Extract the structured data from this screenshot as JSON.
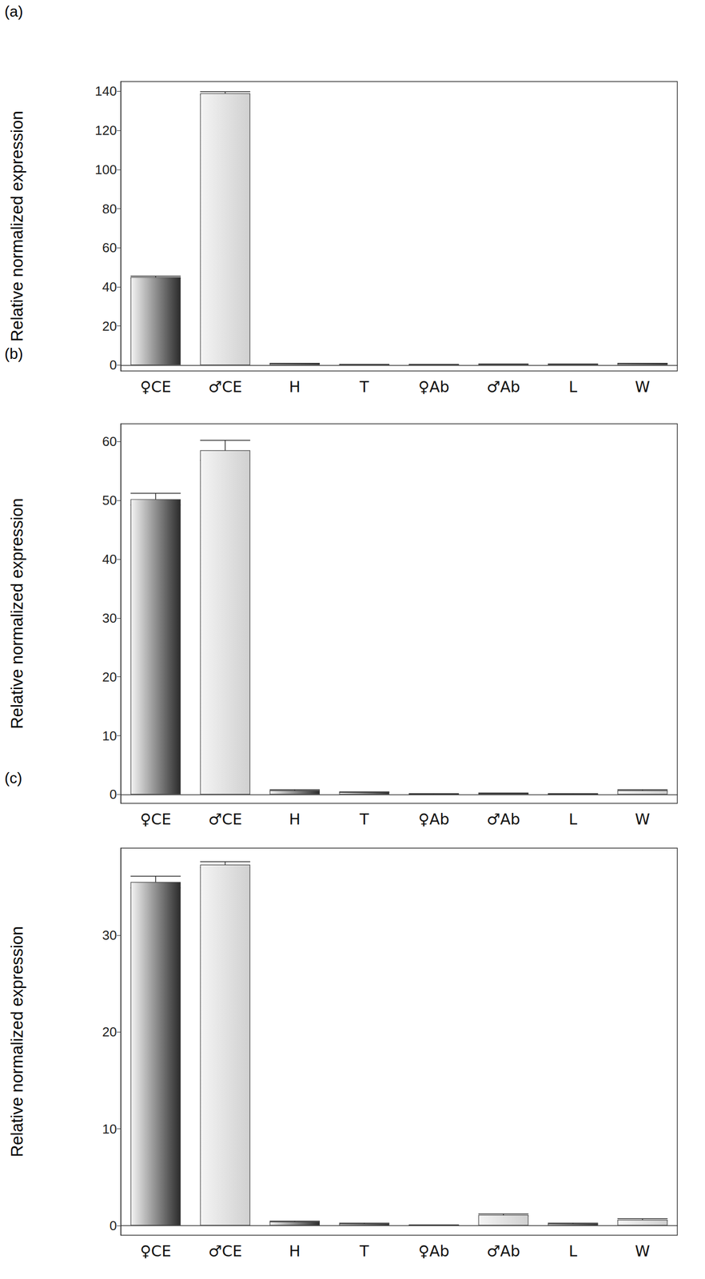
{
  "chart_data": [
    {
      "type": "bar",
      "title": "(a)",
      "ylabel": "Relative normalized expression",
      "categories": [
        "♀CE",
        "♂CE",
        "H",
        "T",
        "♀Ab",
        "♂Ab",
        "L",
        "W"
      ],
      "values": [
        45,
        139,
        0.8,
        0.3,
        0.3,
        0.5,
        0.5,
        0.8
      ],
      "errors": [
        0.5,
        0.8,
        0.1,
        0.05,
        0.05,
        0.05,
        0.05,
        0.1
      ],
      "colors": [
        "#2b2b2b",
        "#d0d0d0",
        "#2b2b2b",
        "#2b2b2b",
        "#2b2b2b",
        "#2b2b2b",
        "#2b2b2b",
        "#2b2b2b"
      ],
      "ylim": [
        -3,
        145
      ],
      "yticks": [
        0,
        20,
        40,
        60,
        80,
        100,
        120,
        140
      ],
      "grid": false
    },
    {
      "type": "bar",
      "title": "(b)",
      "ylabel": "Relative normalized expression",
      "categories": [
        "♀CE",
        "♂CE",
        "H",
        "T",
        "♀Ab",
        "♂Ab",
        "L",
        "W"
      ],
      "values": [
        50.2,
        58.5,
        0.7,
        0.4,
        0.1,
        0.2,
        0.1,
        0.7
      ],
      "errors": [
        1.0,
        1.7,
        0.1,
        0.05,
        0.05,
        0.05,
        0.05,
        0.1
      ],
      "colors": [
        "#2b2b2b",
        "#d0d0d0",
        "#2b2b2b",
        "#2b2b2b",
        "#2b2b2b",
        "#2b2b2b",
        "#2b2b2b",
        "#d0d0d0"
      ],
      "ylim": [
        -1.5,
        63
      ],
      "yticks": [
        0,
        10,
        20,
        30,
        40,
        50,
        60
      ],
      "grid": false
    },
    {
      "type": "bar",
      "title": "(c)",
      "ylabel": "Relative normalized expression",
      "categories": [
        "♀CE",
        "♂CE",
        "H",
        "T",
        "♀Ab",
        "♂Ab",
        "L",
        "W"
      ],
      "values": [
        35.5,
        37.3,
        0.4,
        0.2,
        0.05,
        1.1,
        0.2,
        0.6
      ],
      "errors": [
        0.6,
        0.3,
        0.05,
        0.05,
        0.02,
        0.1,
        0.05,
        0.1
      ],
      "colors": [
        "#2b2b2b",
        "#d0d0d0",
        "#2b2b2b",
        "#2b2b2b",
        "#2b2b2b",
        "#d0d0d0",
        "#2b2b2b",
        "#d0d0d0"
      ],
      "ylim": [
        -1,
        39
      ],
      "yticks": [
        0,
        10,
        20,
        30
      ],
      "grid": false
    }
  ]
}
